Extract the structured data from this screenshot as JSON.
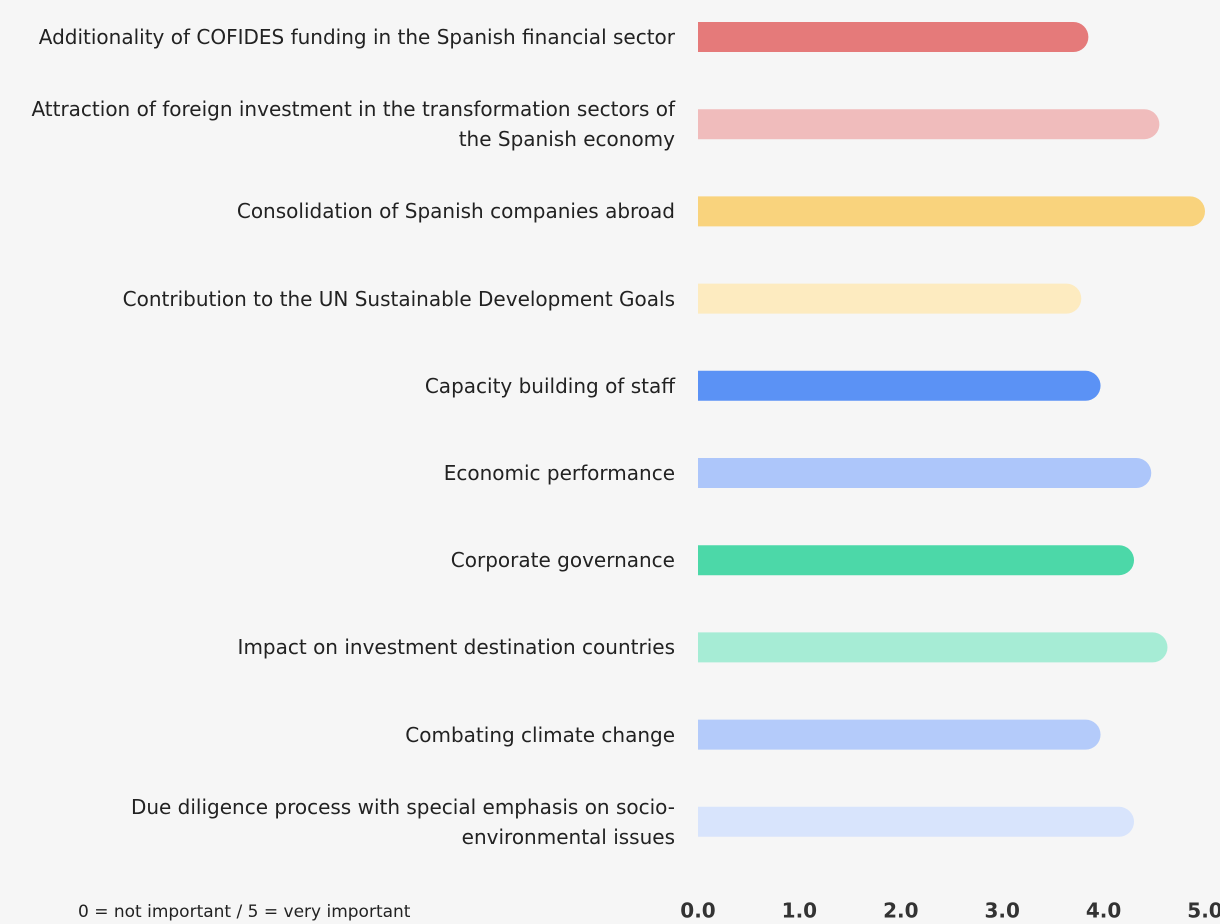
{
  "chart_data": {
    "type": "bar",
    "orientation": "horizontal",
    "categories": [
      "Additionality of COFIDES funding in the Spanish financial sector",
      "Attraction of foreign investment in the transformation sectors of the Spanish economy",
      "Consolidation of Spanish companies abroad",
      "Contribution to the UN Sustainable Development Goals",
      "Capacity building of staff",
      "Economic performance",
      "Corporate governance",
      "Impact on investment destination countries",
      "Combating climate change",
      "Due diligence process with special emphasis on socio-environmental issues"
    ],
    "values": [
      3.85,
      4.55,
      5.0,
      3.78,
      3.97,
      4.47,
      4.3,
      4.63,
      3.97,
      4.3
    ],
    "colors": [
      "#e57a7a",
      "#f0bcbc",
      "#f9d37d",
      "#fdebc0",
      "#5b92f5",
      "#adc6fa",
      "#4cd8a8",
      "#a6ecd5",
      "#b4cbfa",
      "#d8e4fc"
    ],
    "xlim": [
      0,
      5
    ],
    "xticks": [
      {
        "value": 0,
        "label": "0.0"
      },
      {
        "value": 1,
        "label": "1.0"
      },
      {
        "value": 2,
        "label": "2.0"
      },
      {
        "value": 3,
        "label": "3.0"
      },
      {
        "value": 4,
        "label": "4.0"
      },
      {
        "value": 5,
        "label": "5.0"
      }
    ],
    "note": "0 = not important / 5 = very important"
  }
}
